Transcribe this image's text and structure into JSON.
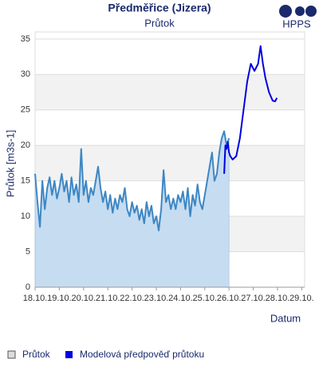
{
  "chart_data": {
    "type": "line",
    "title": "Předměřice (Jizera)",
    "subtitle": "Průtok",
    "logo": "HPPS",
    "y_label": "Průtok [m3s-1]",
    "x_label": "Datum",
    "xlim": [
      18,
      29.12
    ],
    "ylim": [
      0,
      36
    ],
    "xticks": [
      {
        "value": 18,
        "label": "18.10."
      },
      {
        "value": 19,
        "label": "19.10."
      },
      {
        "value": 20,
        "label": "20.10."
      },
      {
        "value": 21,
        "label": "21.10."
      },
      {
        "value": 22,
        "label": "22.10."
      },
      {
        "value": 23,
        "label": "23.10."
      },
      {
        "value": 24,
        "label": "24.10."
      },
      {
        "value": 25,
        "label": "25.10."
      },
      {
        "value": 26,
        "label": "26.10."
      },
      {
        "value": 27,
        "label": "27.10."
      },
      {
        "value": 28,
        "label": "28.10."
      },
      {
        "value": 29,
        "label": "29.10."
      }
    ],
    "yticks": [
      0,
      5,
      10,
      15,
      20,
      25,
      30,
      35
    ],
    "grid": true,
    "series": [
      {
        "name": "Průtok",
        "color": "#3d87c4",
        "fill": "#c6dcf1",
        "x": [
          18.0,
          18.1,
          18.2,
          18.3,
          18.4,
          18.5,
          18.6,
          18.7,
          18.8,
          18.9,
          19.0,
          19.1,
          19.2,
          19.3,
          19.4,
          19.5,
          19.6,
          19.7,
          19.8,
          19.9,
          20.0,
          20.1,
          20.2,
          20.3,
          20.4,
          20.5,
          20.6,
          20.7,
          20.8,
          20.9,
          21.0,
          21.1,
          21.2,
          21.3,
          21.4,
          21.5,
          21.6,
          21.7,
          21.8,
          21.9,
          22.0,
          22.1,
          22.2,
          22.3,
          22.4,
          22.5,
          22.6,
          22.7,
          22.8,
          22.9,
          23.0,
          23.1,
          23.2,
          23.3,
          23.4,
          23.5,
          23.6,
          23.7,
          23.8,
          23.9,
          24.0,
          24.1,
          24.2,
          24.3,
          24.4,
          24.5,
          24.6,
          24.7,
          24.8,
          24.9,
          25.0,
          25.1,
          25.2,
          25.3,
          25.4,
          25.5,
          25.6,
          25.7,
          25.8,
          25.9,
          26.0
        ],
        "values": [
          16,
          12,
          8.5,
          15,
          11,
          14,
          15.5,
          13,
          15,
          12.5,
          14,
          16,
          13.5,
          15,
          12,
          15.5,
          13,
          14.5,
          12,
          19.5,
          13,
          15,
          12,
          14,
          13,
          15,
          17,
          14,
          12,
          13.5,
          11,
          13,
          10.5,
          12.5,
          11,
          13,
          12,
          14,
          11,
          10,
          12,
          10.5,
          11.5,
          9.5,
          11,
          9,
          12,
          10,
          11.5,
          9,
          10,
          8,
          11,
          16.5,
          12,
          13,
          11,
          12.5,
          11,
          13,
          12,
          13.5,
          11,
          14,
          10,
          13,
          11.5,
          14.5,
          12,
          11,
          13,
          15,
          17,
          19,
          15,
          16,
          19,
          21,
          22,
          20,
          21
        ]
      },
      {
        "name": "Modelová předpověď průtoku",
        "color": "#0000e0",
        "x": [
          25.8,
          25.85,
          25.9,
          25.95,
          26.0,
          26.05,
          26.15,
          26.3,
          26.45,
          26.6,
          26.75,
          26.9,
          27.05,
          27.2,
          27.3,
          27.4,
          27.5,
          27.65,
          27.8,
          27.9,
          27.98
        ],
        "values": [
          16,
          20,
          19.5,
          20.5,
          19,
          18.5,
          18,
          18.5,
          21,
          25,
          29,
          31.5,
          30.5,
          31.5,
          34,
          31.5,
          29.5,
          27.5,
          26.3,
          26.2,
          26.7
        ]
      }
    ]
  }
}
